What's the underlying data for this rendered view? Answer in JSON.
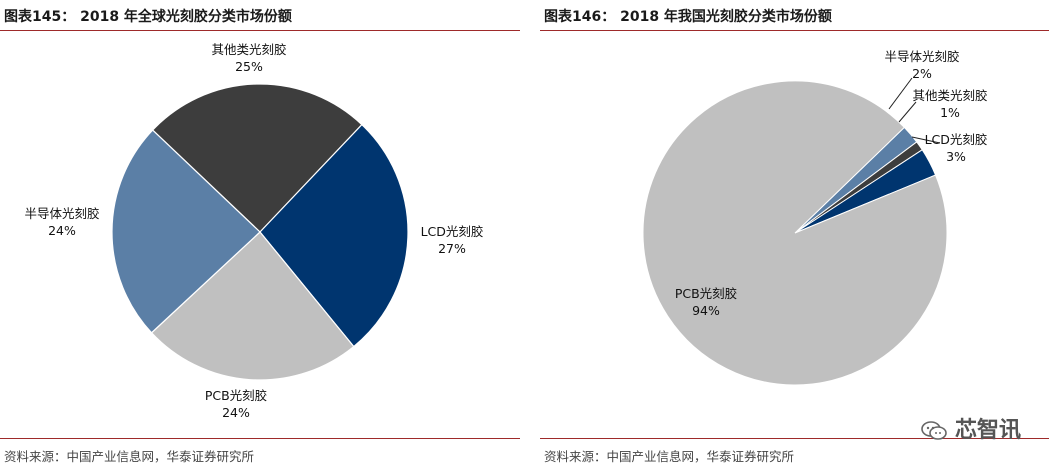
{
  "colors": {
    "title_rule": "#9e2a2a",
    "semiconductor": "#5b7fa6",
    "other": "#3d3d3d",
    "lcd": "#00356f",
    "pcb": "#c0c0c0"
  },
  "left": {
    "title": "图表145：  2018 年全球光刻胶分类市场份额",
    "source": "资料来源：中国产业信息网，华泰证券研究所"
  },
  "right": {
    "title": "图表146：  2018 年我国光刻胶分类市场份额",
    "source": "资料来源：中国产业信息网，华泰证券研究所"
  },
  "watermark": {
    "text": "芯智讯",
    "icon": "wechat-icon"
  },
  "chart_data": [
    {
      "type": "pie",
      "title": "2018 年全球光刻胶分类市场份额",
      "slices": [
        {
          "key": "other",
          "name": "其他类光刻胶",
          "value": 25,
          "pct_label": "25%"
        },
        {
          "key": "lcd",
          "name": "LCD光刻胶",
          "value": 27,
          "pct_label": "27%"
        },
        {
          "key": "pcb",
          "name": "PCB光刻胶",
          "value": 24,
          "pct_label": "24%"
        },
        {
          "key": "semiconductor",
          "name": "半导体光刻胶",
          "value": 24,
          "pct_label": "24%"
        }
      ]
    },
    {
      "type": "pie",
      "title": "2018 年我国光刻胶分类市场份额",
      "slices": [
        {
          "key": "semiconductor",
          "name": "半导体光刻胶",
          "value": 2,
          "pct_label": "2%"
        },
        {
          "key": "other",
          "name": "其他类光刻胶",
          "value": 1,
          "pct_label": "1%"
        },
        {
          "key": "lcd",
          "name": "LCD光刻胶",
          "value": 3,
          "pct_label": "3%"
        },
        {
          "key": "pcb",
          "name": "PCB光刻胶",
          "value": 94,
          "pct_label": "94%"
        }
      ]
    }
  ]
}
